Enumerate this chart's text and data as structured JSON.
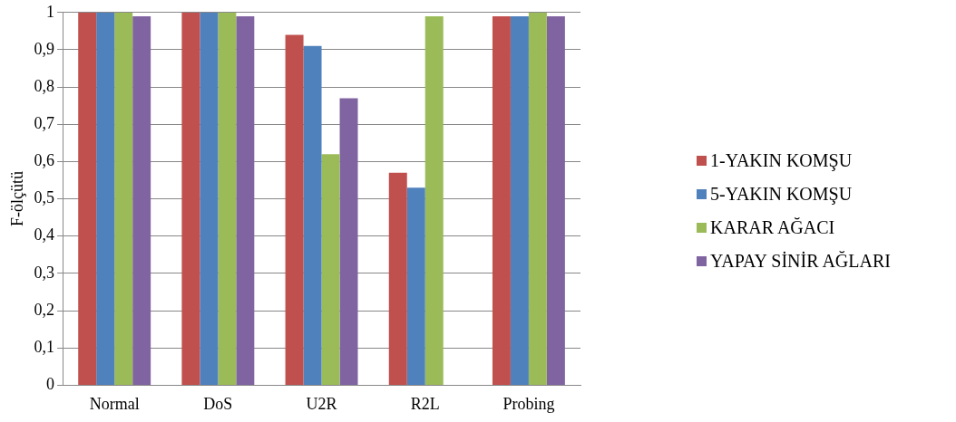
{
  "chart_data": {
    "type": "bar",
    "ylabel": "F-ölçütü",
    "categories": [
      "Normal",
      "DoS",
      "U2R",
      "R2L",
      "Probing"
    ],
    "series": [
      {
        "name": "1-YAKIN KOMŞU",
        "color": "#c0504d",
        "values": [
          1,
          1,
          0.94,
          0.57,
          0.99
        ]
      },
      {
        "name": "5-YAKIN KOMŞU",
        "color": "#4f81bd",
        "values": [
          1,
          1,
          0.91,
          0.53,
          0.99
        ]
      },
      {
        "name": "KARAR AĞACI",
        "color": "#9bbb59",
        "values": [
          1,
          1,
          0.62,
          0.99,
          1
        ]
      },
      {
        "name": "YAPAY SİNİR AĞLARI",
        "color": "#8064a2",
        "values": [
          0.99,
          0.99,
          0.77,
          null,
          0.99
        ]
      }
    ],
    "ylim": [
      0,
      1
    ],
    "yticks": [
      {
        "value": 0,
        "label": "0"
      },
      {
        "value": 0.1,
        "label": "0,1"
      },
      {
        "value": 0.2,
        "label": "0,2"
      },
      {
        "value": 0.3,
        "label": "0,3"
      },
      {
        "value": 0.4,
        "label": "0,4"
      },
      {
        "value": 0.5,
        "label": "0,5"
      },
      {
        "value": 0.6,
        "label": "0,6"
      },
      {
        "value": 0.7,
        "label": "0,7"
      },
      {
        "value": 0.8,
        "label": "0,8"
      },
      {
        "value": 0.9,
        "label": "0,9"
      },
      {
        "value": 1,
        "label": "1"
      }
    ],
    "grid": "y",
    "legend": "right"
  }
}
